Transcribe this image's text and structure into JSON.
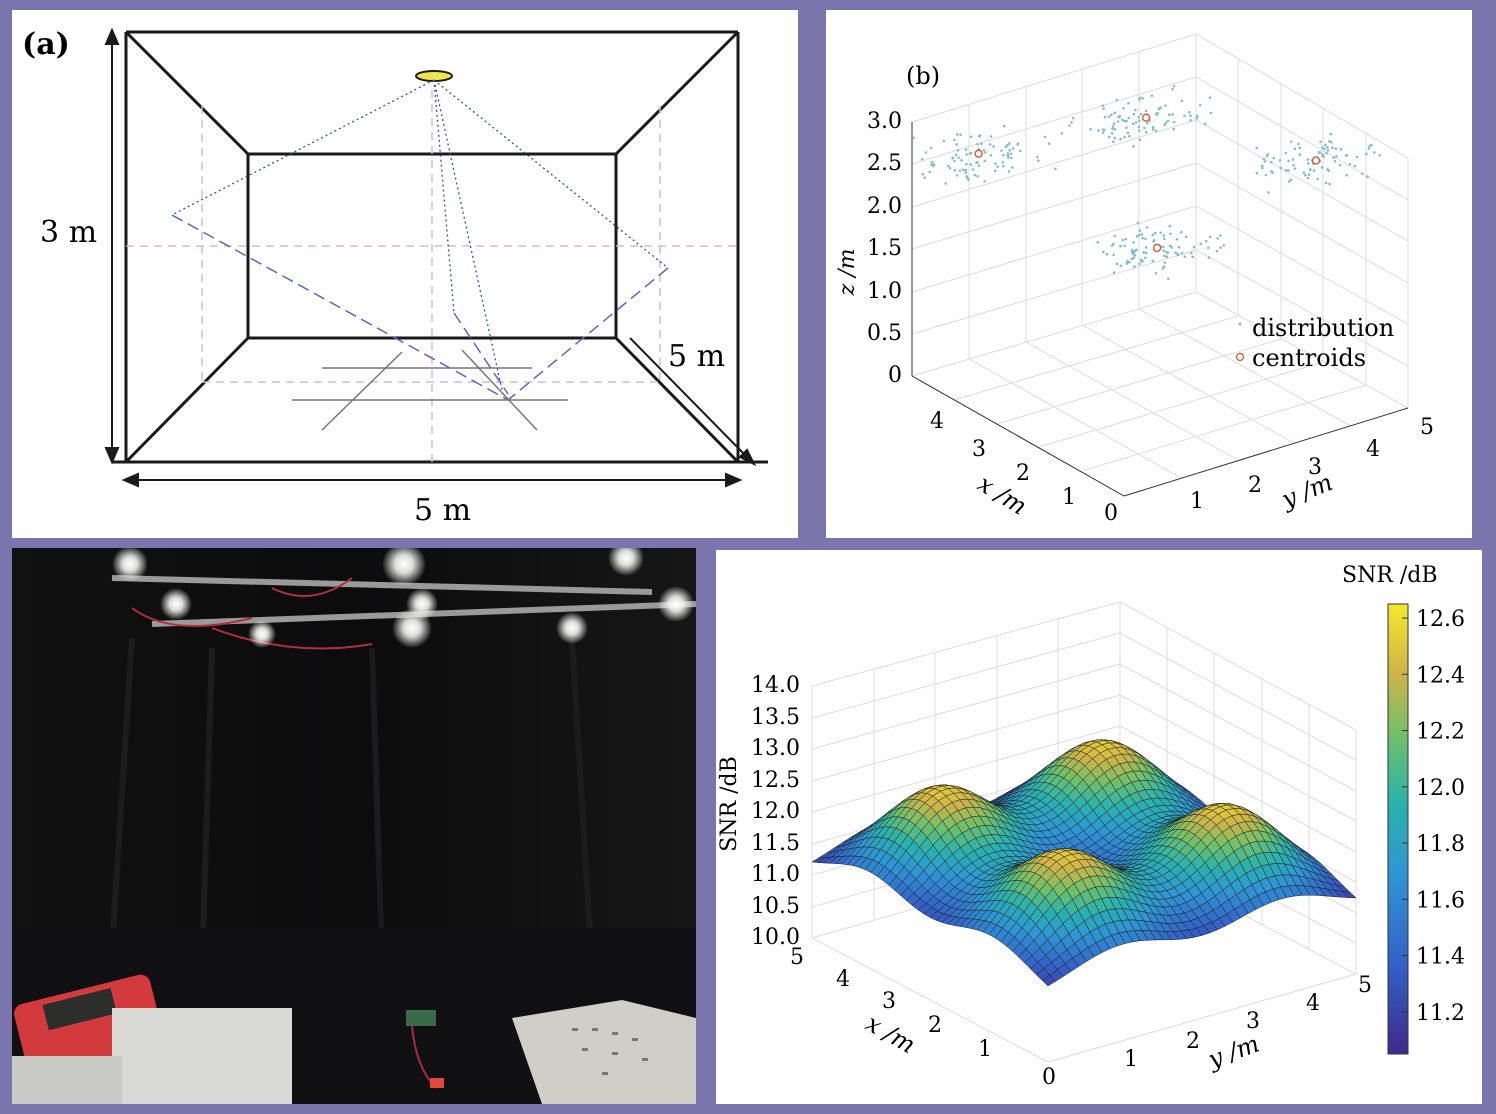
{
  "panel_a": {
    "label": "(a)",
    "height_label": "3 m",
    "width_label": "5 m",
    "depth_label": "5 m"
  },
  "chart_data": [
    {
      "type": "scatter",
      "panel_label": "(b)",
      "dimensions": "3d",
      "xlabel": "x /m",
      "ylabel": "y /m",
      "zlabel": "z /m",
      "xlim": [
        0,
        5
      ],
      "ylim": [
        0,
        5
      ],
      "zlim": [
        0,
        3
      ],
      "x_ticks": [
        "1",
        "2",
        "3",
        "4"
      ],
      "y_ticks": [
        "0",
        "1",
        "2",
        "3",
        "4",
        "5"
      ],
      "z_ticks": [
        "0",
        "0.5",
        "1.0",
        "1.5",
        "2.0",
        "2.5",
        "3.0"
      ],
      "grid": true,
      "legend_position": "right",
      "series": [
        {
          "name": "distribution",
          "color": "#7fbfc9",
          "count_per_cluster": 90
        },
        {
          "name": "centroids",
          "color": "#d9542c",
          "points": [
            {
              "x": 4.5,
              "y": 0.8,
              "z": 2.6
            },
            {
              "x": 2.3,
              "y": 2.3,
              "z": 1.8
            },
            {
              "x": 4.3,
              "y": 3.6,
              "z": 2.5
            },
            {
              "x": 1.5,
              "y": 4.5,
              "z": 2.6
            }
          ]
        }
      ]
    },
    {
      "type": "surface",
      "xlabel": "x /m",
      "ylabel": "y /m",
      "zlabel": "SNR /dB",
      "xlim": [
        0,
        5
      ],
      "ylim": [
        0,
        5
      ],
      "zlim": [
        10,
        14
      ],
      "x_ticks": [
        "1",
        "2",
        "3",
        "4",
        "5"
      ],
      "y_ticks": [
        "0",
        "1",
        "2",
        "3",
        "4",
        "5"
      ],
      "z_ticks": [
        "10.0",
        "10.5",
        "11.0",
        "11.5",
        "12.0",
        "12.5",
        "13.0",
        "13.5",
        "14.0"
      ],
      "grid": true,
      "colorbar": {
        "title": "SNR /dB",
        "ticks": [
          "11.2",
          "11.4",
          "11.6",
          "11.8",
          "12.0",
          "12.2",
          "12.4",
          "12.6"
        ],
        "range": [
          11.05,
          12.65
        ],
        "colormap": "parula"
      },
      "peaks": [
        {
          "x": 1.2,
          "y": 1.2,
          "z": 12.5
        },
        {
          "x": 1.2,
          "y": 3.8,
          "z": 12.5
        },
        {
          "x": 3.8,
          "y": 1.2,
          "z": 12.5
        },
        {
          "x": 3.8,
          "y": 3.8,
          "z": 12.5
        }
      ],
      "min_value": 11.05
    }
  ],
  "photo": {
    "description_icon": "lab-setup-photo-icon"
  },
  "colors": {
    "background": "#7a76ad",
    "dotted_ray": "#3b49b8",
    "guide_dashed": "#d9b7cf"
  }
}
